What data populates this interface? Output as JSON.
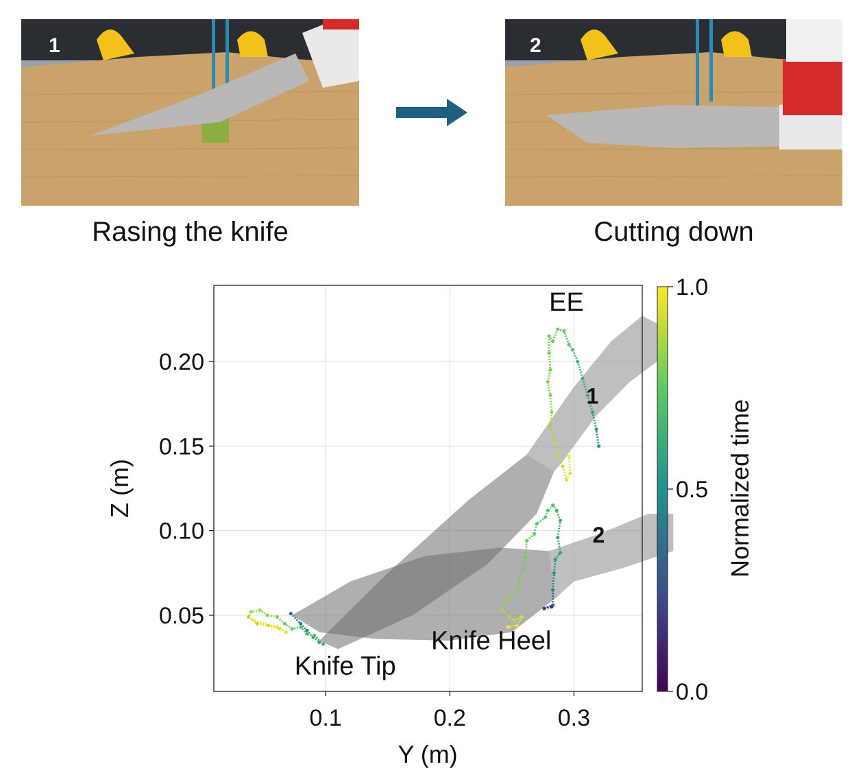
{
  "panels": [
    {
      "number": "1",
      "caption": "Rasing the knife"
    },
    {
      "number": "2",
      "caption": "Cutting down"
    }
  ],
  "colors": {
    "arrow": "#1f5f82",
    "board": "#c9a36b",
    "blade": "#b9b8b6",
    "handle_clamp": "#d42a2a",
    "holder": "#f2c21b"
  },
  "chart_data": {
    "type": "scatter",
    "xlabel": "Y (m)",
    "ylabel": "Z (m)",
    "xlim": [
      0.01,
      0.355
    ],
    "ylim": [
      0.005,
      0.245
    ],
    "xticks": [
      0.1,
      0.2,
      0.3
    ],
    "xtick_labels": [
      "0.1",
      "0.2",
      "0.3"
    ],
    "yticks": [
      0.05,
      0.1,
      0.15,
      0.2
    ],
    "ytick_labels": [
      "0.05",
      "0.10",
      "0.15",
      "0.20"
    ],
    "grid": true,
    "colorbar": {
      "label": "Normalized time",
      "ticks": [
        "0.0",
        "0.5",
        "1.0"
      ],
      "colormap": "viridis",
      "range": [
        0.0,
        1.0
      ]
    },
    "annotations": [
      {
        "text": "EE",
        "x": 0.28,
        "y": 0.23
      },
      {
        "text": "1",
        "x": 0.31,
        "y": 0.175
      },
      {
        "text": "2",
        "x": 0.315,
        "y": 0.093
      },
      {
        "text": "Knife Tip",
        "x": 0.075,
        "y": 0.015
      },
      {
        "text": "Knife Heel",
        "x": 0.185,
        "y": 0.03
      }
    ],
    "series": [
      {
        "points": [
          [
            0.32,
            0.15,
            0.5
          ],
          [
            0.318,
            0.16,
            0.55
          ],
          [
            0.315,
            0.17,
            0.58
          ],
          [
            0.311,
            0.18,
            0.62
          ],
          [
            0.307,
            0.19,
            0.64
          ],
          [
            0.303,
            0.2,
            0.67
          ],
          [
            0.299,
            0.207,
            0.7
          ],
          [
            0.296,
            0.21,
            0.72
          ],
          [
            0.292,
            0.218,
            0.74
          ],
          [
            0.287,
            0.219,
            0.76
          ],
          [
            0.283,
            0.212,
            0.77
          ],
          [
            0.28,
            0.215,
            0.78
          ],
          [
            0.28,
            0.205,
            0.79
          ],
          [
            0.281,
            0.195,
            0.8
          ],
          [
            0.279,
            0.188,
            0.81
          ],
          [
            0.281,
            0.18,
            0.82
          ],
          [
            0.282,
            0.17,
            0.84
          ],
          [
            0.281,
            0.162,
            0.86
          ],
          [
            0.284,
            0.154,
            0.88
          ],
          [
            0.287,
            0.145,
            0.9
          ],
          [
            0.291,
            0.138,
            0.92
          ],
          [
            0.294,
            0.13,
            0.95
          ],
          [
            0.297,
            0.134,
            0.97
          ],
          [
            0.296,
            0.144,
            1.0
          ]
        ]
      },
      {
        "points": [
          [
            0.282,
            0.055,
            0.1
          ],
          [
            0.276,
            0.054,
            0.2
          ],
          [
            0.283,
            0.056,
            0.35
          ],
          [
            0.283,
            0.065,
            0.45
          ],
          [
            0.284,
            0.075,
            0.5
          ],
          [
            0.285,
            0.083,
            0.55
          ],
          [
            0.289,
            0.087,
            0.58
          ],
          [
            0.287,
            0.096,
            0.62
          ],
          [
            0.289,
            0.106,
            0.64
          ],
          [
            0.286,
            0.112,
            0.67
          ],
          [
            0.283,
            0.115,
            0.7
          ],
          [
            0.279,
            0.112,
            0.72
          ],
          [
            0.277,
            0.108,
            0.74
          ],
          [
            0.27,
            0.104,
            0.75
          ],
          [
            0.268,
            0.098,
            0.76
          ],
          [
            0.262,
            0.094,
            0.77
          ],
          [
            0.261,
            0.084,
            0.78
          ],
          [
            0.259,
            0.077,
            0.79
          ],
          [
            0.256,
            0.071,
            0.8
          ],
          [
            0.255,
            0.065,
            0.81
          ],
          [
            0.249,
            0.061,
            0.82
          ],
          [
            0.245,
            0.058,
            0.83
          ],
          [
            0.242,
            0.053,
            0.85
          ],
          [
            0.248,
            0.049,
            0.88
          ],
          [
            0.252,
            0.047,
            0.91
          ],
          [
            0.258,
            0.049,
            0.94
          ],
          [
            0.254,
            0.044,
            0.97
          ],
          [
            0.247,
            0.043,
            1.0
          ]
        ]
      },
      {
        "points": [
          [
            0.072,
            0.051,
            0.4
          ],
          [
            0.08,
            0.045,
            0.45
          ],
          [
            0.085,
            0.041,
            0.5
          ],
          [
            0.09,
            0.037,
            0.55
          ],
          [
            0.095,
            0.034,
            0.6
          ],
          [
            0.098,
            0.033,
            0.65
          ],
          [
            0.091,
            0.038,
            0.68
          ],
          [
            0.085,
            0.039,
            0.7
          ],
          [
            0.08,
            0.043,
            0.73
          ],
          [
            0.073,
            0.042,
            0.76
          ],
          [
            0.067,
            0.045,
            0.78
          ],
          [
            0.061,
            0.049,
            0.8
          ],
          [
            0.053,
            0.05,
            0.82
          ],
          [
            0.047,
            0.053,
            0.84
          ],
          [
            0.04,
            0.052,
            0.86
          ],
          [
            0.038,
            0.049,
            0.88
          ],
          [
            0.045,
            0.045,
            0.9
          ],
          [
            0.054,
            0.044,
            0.92
          ],
          [
            0.063,
            0.042,
            0.94
          ],
          [
            0.068,
            0.04,
            0.96
          ],
          [
            0.061,
            0.043,
            0.98
          ],
          [
            0.042,
            0.047,
            1.0
          ]
        ]
      }
    ]
  }
}
